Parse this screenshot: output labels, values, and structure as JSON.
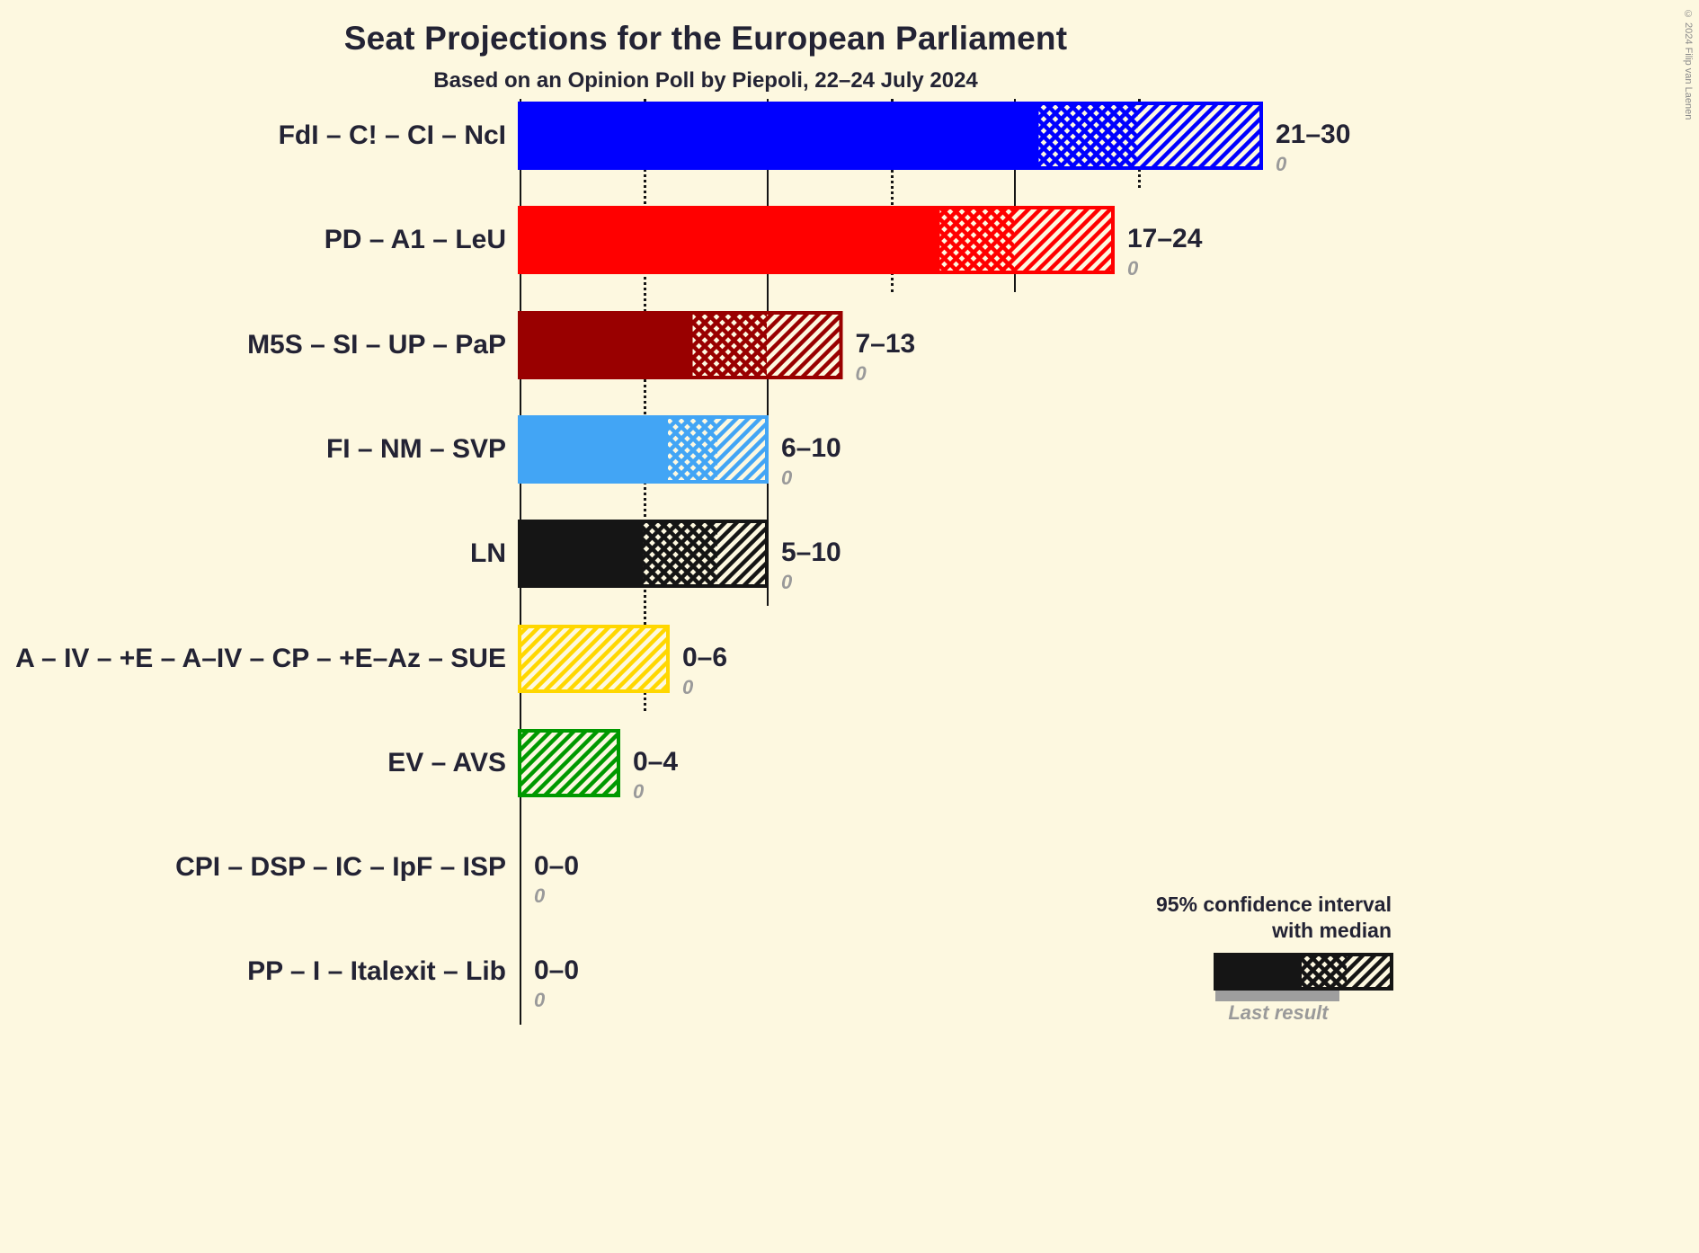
{
  "page": {
    "copyright": "© 2024 Filip van Laenen"
  },
  "chart_data": {
    "type": "bar",
    "orientation": "horizontal",
    "title": "Seat Projections for the European Parliament",
    "subtitle": "Based on an Opinion Poll by Piepoli, 22–24 July 2024",
    "x_axis": {
      "min": 0,
      "max": 30,
      "solid_gridlines": [
        0,
        10,
        20
      ],
      "dotted_gridlines": [
        5,
        15,
        25
      ]
    },
    "legend": {
      "ci_line1": "95% confidence interval",
      "ci_line2": "with median",
      "last_result_label": "Last result"
    },
    "value_semantics": "seats: low = 95% CI lower bound, median, high = 95% CI upper bound; last_result shown in gray",
    "parties": [
      {
        "label": "FdI – C! – CI – NcI",
        "color": "#0000FF",
        "low": 21,
        "median": 25,
        "high": 30,
        "range_label": "21–30",
        "last_result": 0
      },
      {
        "label": "PD – A1 – LeU",
        "color": "#FF0000",
        "low": 17,
        "median": 20,
        "high": 24,
        "range_label": "17–24",
        "last_result": 0
      },
      {
        "label": "M5S – SI – UP – PaP",
        "color": "#990000",
        "low": 7,
        "median": 10,
        "high": 13,
        "range_label": "7–13",
        "last_result": 0
      },
      {
        "label": "FI – NM – SVP",
        "color": "#42A5F5",
        "low": 6,
        "median": 8,
        "high": 10,
        "range_label": "6–10",
        "last_result": 0
      },
      {
        "label": "LN",
        "color": "#151515",
        "low": 5,
        "median": 8,
        "high": 10,
        "range_label": "5–10",
        "last_result": 0
      },
      {
        "label": "A – IV – +E – A–IV – CP – +E–Az – SUE",
        "color": "#FFD700",
        "low": 0,
        "median": 0,
        "high": 6,
        "range_label": "0–6",
        "last_result": 0
      },
      {
        "label": "EV – AVS",
        "color": "#009900",
        "low": 0,
        "median": 0,
        "high": 4,
        "range_label": "0–4",
        "last_result": 0
      },
      {
        "label": "CPI – DSP – IC – IpF – ISP",
        "color": "#151515",
        "low": 0,
        "median": 0,
        "high": 0,
        "range_label": "0–0",
        "last_result": 0
      },
      {
        "label": "PP – I – Italexit – Lib",
        "color": "#151515",
        "low": 0,
        "median": 0,
        "high": 0,
        "range_label": "0–0",
        "last_result": 0
      }
    ]
  }
}
